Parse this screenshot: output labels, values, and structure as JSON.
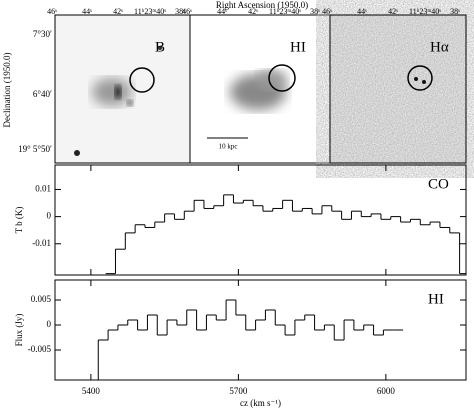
{
  "figure": {
    "title": "Right Ascension (1950.0)",
    "ylabel": "Declination (1950.0)",
    "ra_ticks": [
      "46ˢ",
      "44ˢ",
      "42ˢ",
      "11ʰ23ᵐ40ˢ",
      "38ˢ"
    ],
    "dec_ticks": [
      "7°30′",
      "6°40′",
      "19° 5°50′"
    ],
    "panels": [
      {
        "label": "B"
      },
      {
        "label": "HI",
        "scale_bar": "10 kpc"
      },
      {
        "label": "Hα"
      }
    ]
  },
  "chart_data": [
    {
      "type": "step",
      "label": "CO",
      "ylabel": "T b (K)",
      "color": "#000000",
      "x": [
        5430,
        5450,
        5470,
        5490,
        5510,
        5530,
        5550,
        5570,
        5590,
        5610,
        5630,
        5650,
        5670,
        5690,
        5710,
        5730,
        5750,
        5770,
        5790,
        5810,
        5830,
        5850,
        5870,
        5890,
        5910,
        5930,
        5950,
        5970,
        5990,
        6010,
        6030,
        6050,
        6070,
        6090,
        6110,
        6130,
        6150
      ],
      "values": [
        -0.021,
        -0.012,
        -0.006,
        -0.003,
        -0.004,
        -0.002,
        0.001,
        -0.001,
        0.002,
        0.006,
        0.003,
        0.004,
        0.008,
        0.005,
        0.006,
        0.004,
        0.002,
        0.003,
        0.006,
        0.002,
        0.003,
        0.001,
        0.004,
        0.002,
        -0.001,
        0.002,
        0,
        0.001,
        -0.001,
        0,
        -0.002,
        -0.001,
        -0.003,
        -0.002,
        -0.004,
        -0.006,
        -0.021
      ],
      "xlim": [
        5327,
        6163
      ],
      "ylim": [
        -0.0215,
        0.019
      ],
      "xticks": [
        5400,
        5700,
        6000
      ],
      "yticks": [
        0.01,
        0,
        -0.01
      ]
    },
    {
      "type": "step",
      "label": "HI",
      "ylabel": "Flux (Jy)",
      "xlabel": "cz (km s⁻¹)",
      "color": "#000000",
      "x": [
        5395,
        5415,
        5435,
        5455,
        5475,
        5495,
        5515,
        5535,
        5555,
        5575,
        5595,
        5615,
        5635,
        5655,
        5675,
        5695,
        5715,
        5735,
        5755,
        5775,
        5795,
        5815,
        5835,
        5855,
        5875,
        5895,
        5915,
        5935,
        5955,
        5975,
        5995,
        6015
      ],
      "values": [
        -0.011,
        -0.003,
        -0.001,
        0,
        0.001,
        -0.001,
        0.002,
        -0.002,
        0.001,
        0,
        0.003,
        -0.001,
        0.002,
        0.001,
        0.005,
        0.002,
        -0.001,
        0.001,
        0.003,
        0,
        -0.002,
        0.001,
        0.002,
        -0.001,
        0,
        -0.003,
        0.001,
        -0.001,
        0,
        -0.002,
        -0.001,
        -0.001
      ],
      "xlim": [
        5327,
        6163
      ],
      "ylim": [
        -0.011,
        0.009
      ],
      "xticks": [
        5400,
        5700,
        6000
      ],
      "yticks": [
        0.005,
        0,
        -0.005
      ]
    }
  ]
}
